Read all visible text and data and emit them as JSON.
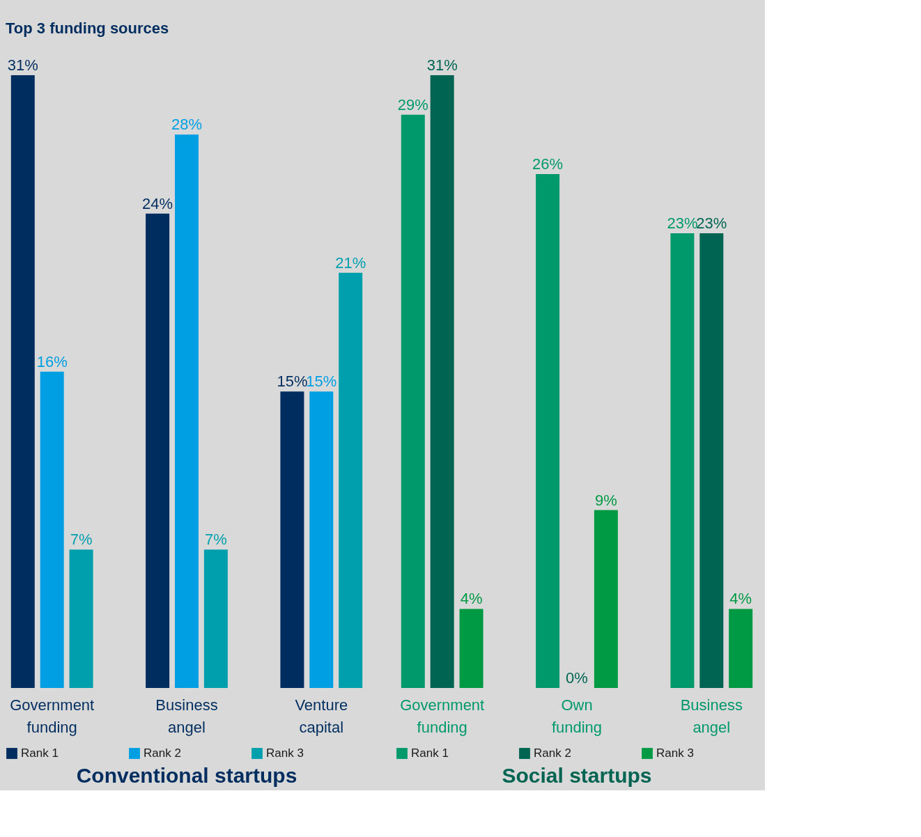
{
  "chart_data": [
    {
      "type": "bar",
      "title": "Top 3 funding sources",
      "xlabel": "Conventional startups",
      "categories": [
        "Government funding",
        "Business angel",
        "Venture capital"
      ],
      "legend": "bottom",
      "series": [
        {
          "name": "Rank 1",
          "color": "#002d5f",
          "values": [
            31,
            24,
            15
          ],
          "value_labels": [
            "31%",
            "24%",
            "15%"
          ]
        },
        {
          "name": "Rank 2",
          "color": "#009fe3",
          "values": [
            16,
            28,
            15
          ],
          "value_labels": [
            "16%",
            "28%",
            "15%"
          ]
        },
        {
          "name": "Rank 3",
          "color": "#009fad",
          "values": [
            7,
            7,
            21
          ],
          "value_labels": [
            "7%",
            "7%",
            "21%"
          ]
        }
      ]
    },
    {
      "type": "bar",
      "xlabel": "Social startups",
      "categories": [
        "Government funding",
        "Own funding",
        "Business angel"
      ],
      "legend": "bottom",
      "series": [
        {
          "name": "Rank 1",
          "color": "#00996b",
          "values": [
            29,
            26,
            23
          ],
          "value_labels": [
            "29%",
            "26%",
            "23%"
          ]
        },
        {
          "name": "Rank 2",
          "color": "#006452",
          "values": [
            31,
            0,
            23
          ],
          "value_labels": [
            "31%",
            "0%",
            "23%"
          ]
        },
        {
          "name": "Rank 3",
          "color": "#009a44",
          "values": [
            4,
            9,
            4
          ],
          "value_labels": [
            "4%",
            "9%",
            "4%"
          ]
        }
      ]
    }
  ]
}
